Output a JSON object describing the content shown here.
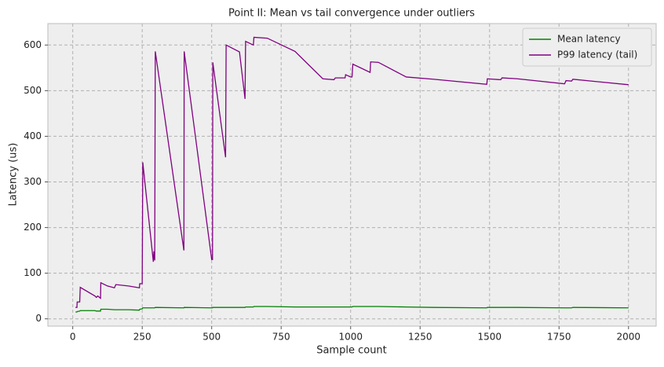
{
  "chart_data": {
    "type": "line",
    "title": "Point II: Mean vs tail convergence under outliers",
    "xlabel": "Sample count",
    "ylabel": "Latency (us)",
    "x": [
      10,
      15,
      16,
      25,
      27,
      80,
      85,
      90,
      100,
      101,
      125,
      150,
      155,
      200,
      240,
      241,
      250,
      252,
      290,
      292,
      295,
      297,
      400,
      401,
      500,
      503,
      504,
      550,
      552,
      600,
      620,
      622,
      650,
      652,
      700,
      800,
      900,
      940,
      945,
      980,
      982,
      1000,
      1005,
      1008,
      1070,
      1072,
      1100,
      1200,
      1300,
      1490,
      1492,
      1540,
      1545,
      1600,
      1770,
      1775,
      1795,
      1800,
      2000
    ],
    "series": [
      {
        "name": "Mean latency",
        "color": "#008000",
        "values": [
          15,
          15,
          16,
          17,
          18,
          18,
          17,
          17,
          17,
          21,
          21,
          20,
          20,
          20,
          19,
          21,
          22,
          24,
          24,
          24,
          24,
          25,
          24,
          25,
          24,
          24,
          25,
          25,
          25,
          25,
          25,
          26,
          26,
          27,
          27,
          26,
          26,
          26,
          26,
          26,
          26,
          26,
          26,
          27,
          27,
          27,
          27,
          26,
          25,
          24,
          25,
          25,
          25,
          25,
          24,
          24,
          24,
          25,
          24
        ]
      },
      {
        "name": "P99 latency (tail)",
        "color": "#800080",
        "values": [
          25,
          25,
          37,
          37,
          69,
          50,
          47,
          50,
          45,
          79,
          72,
          68,
          75,
          72,
          68,
          77,
          77,
          343,
          125,
          148,
          128,
          586,
          150,
          586,
          130,
          130,
          562,
          354,
          600,
          585,
          482,
          608,
          600,
          617,
          615,
          586,
          526,
          524,
          528,
          528,
          535,
          530,
          530,
          558,
          540,
          563,
          562,
          530,
          525,
          514,
          526,
          524,
          528,
          526,
          515,
          522,
          521,
          525,
          513
        ]
      }
    ],
    "xlim": [
      -89.5,
      2099.5
    ],
    "ylim": [
      -16,
      647
    ],
    "xticks": [
      0,
      250,
      500,
      750,
      1000,
      1250,
      1500,
      1750,
      2000
    ],
    "yticks": [
      0,
      100,
      200,
      300,
      400,
      500,
      600
    ],
    "grid": true,
    "legend": "upper right"
  }
}
